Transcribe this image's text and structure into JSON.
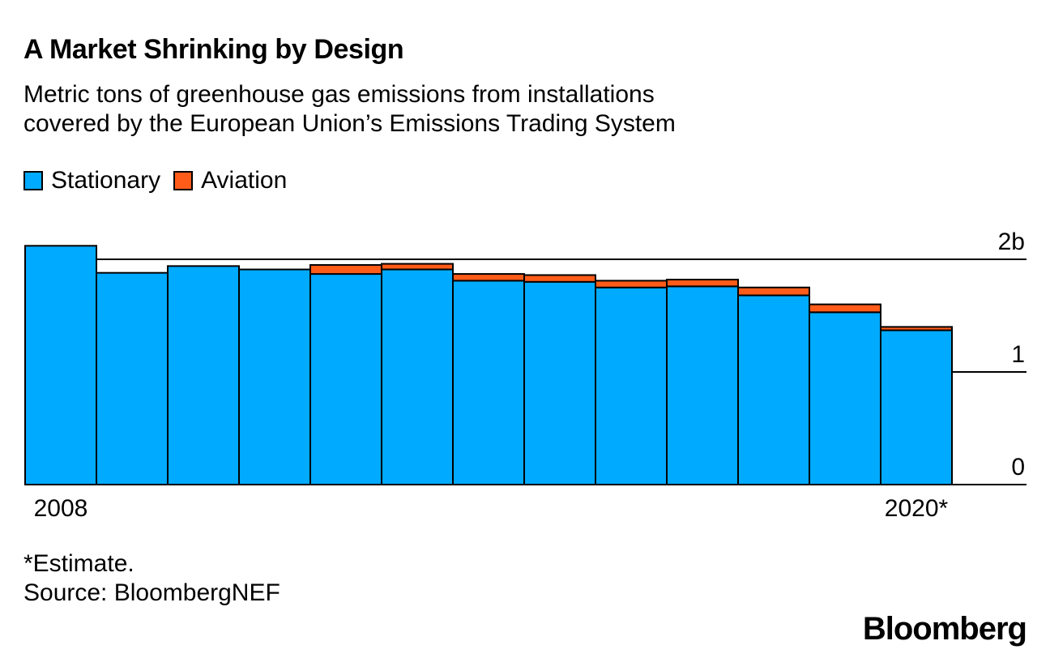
{
  "header": {
    "title": "A Market Shrinking by Design",
    "subtitle_line1": "Metric tons of greenhouse gas emissions from installations",
    "subtitle_line2": "covered by the European Union’s Emissions Trading System"
  },
  "legend": {
    "items": [
      {
        "label": "Stationary",
        "color": "#00aaff"
      },
      {
        "label": "Aviation",
        "color": "#ff5c1a"
      }
    ]
  },
  "footer": {
    "note": "*Estimate.",
    "source": "Source: BloombergNEF",
    "brand": "Bloomberg"
  },
  "chart_data": {
    "type": "bar",
    "stacked": true,
    "title": "A Market Shrinking by Design",
    "xlabel": "",
    "ylabel": "",
    "ylim": [
      0,
      2
    ],
    "y_ticks": [
      {
        "value": 0,
        "label": "0"
      },
      {
        "value": 1,
        "label": "1"
      },
      {
        "value": 2,
        "label": "2b"
      }
    ],
    "categories": [
      "2008",
      "2009",
      "2010",
      "2011",
      "2012",
      "2013",
      "2014",
      "2015",
      "2016",
      "2017",
      "2018",
      "2019",
      "2020*"
    ],
    "x_tick_labels": [
      {
        "index": 0,
        "label": "2008"
      },
      {
        "index": 12,
        "label": "2020*"
      }
    ],
    "series": [
      {
        "name": "Stationary",
        "color": "#00aaff",
        "values": [
          2.12,
          1.88,
          1.94,
          1.91,
          1.87,
          1.91,
          1.81,
          1.8,
          1.75,
          1.76,
          1.68,
          1.53,
          1.37
        ]
      },
      {
        "name": "Aviation",
        "color": "#ff5c1a",
        "values": [
          0,
          0,
          0,
          0,
          0.08,
          0.05,
          0.06,
          0.06,
          0.06,
          0.06,
          0.07,
          0.07,
          0.03
        ]
      }
    ],
    "grid": true,
    "legend_position": "top-left"
  }
}
